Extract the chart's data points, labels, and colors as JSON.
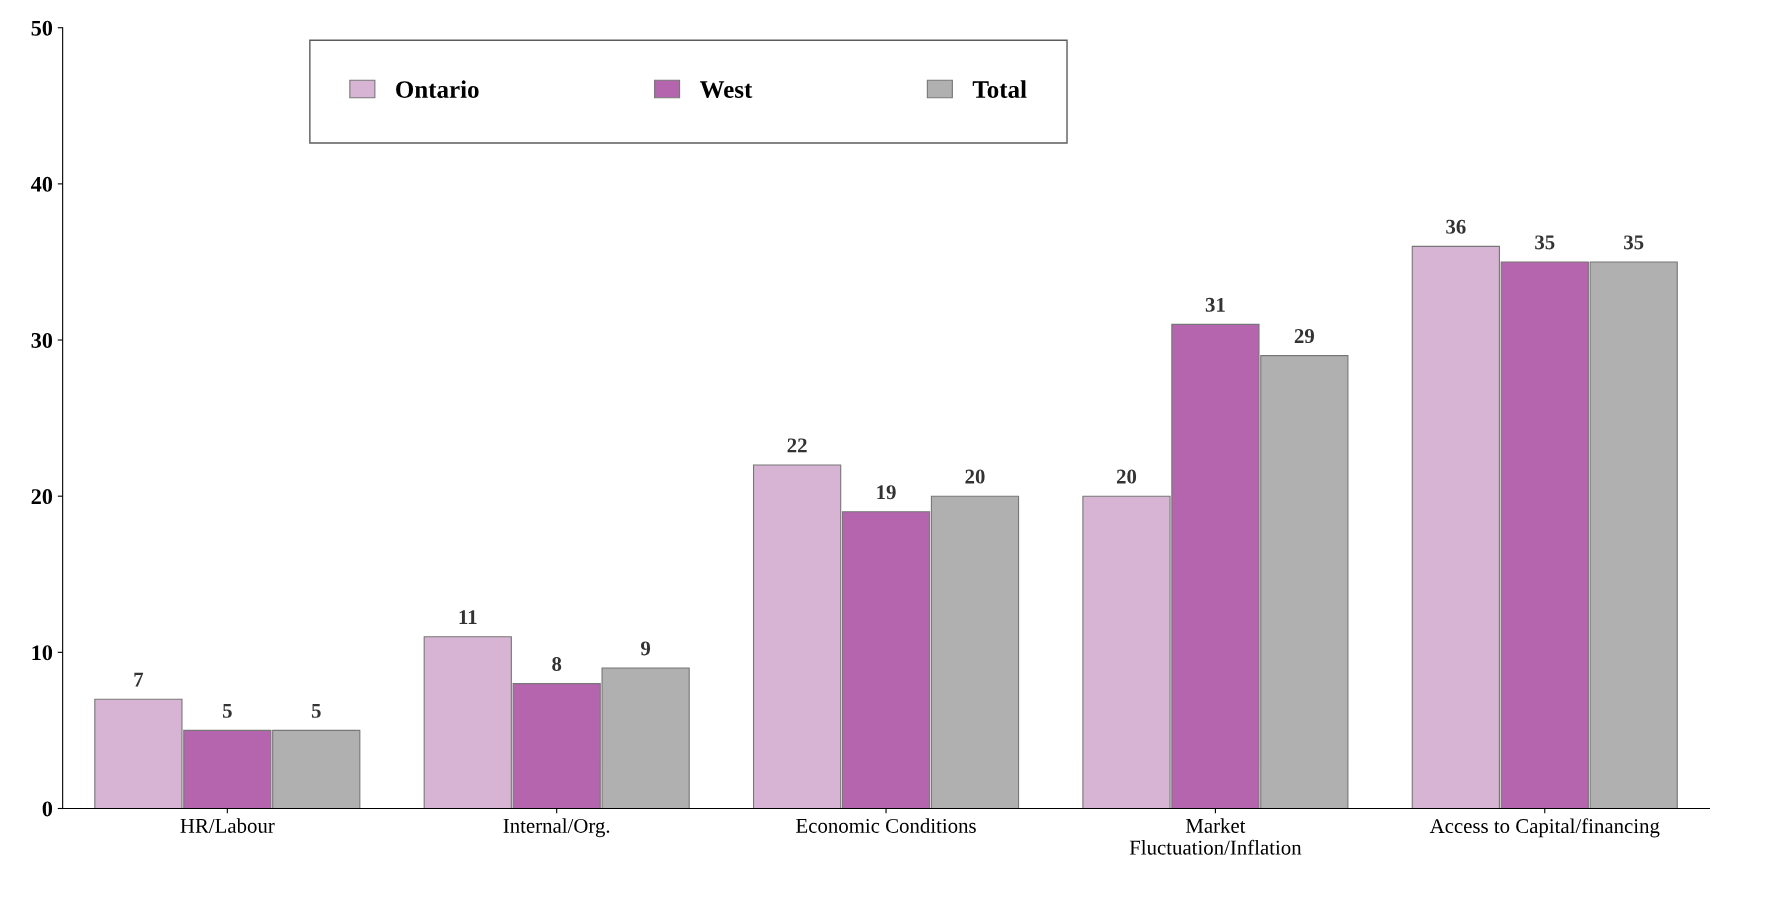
{
  "chart_data": {
    "type": "bar",
    "categories": [
      "HR/Labour",
      "Internal/Org.",
      "Economic Conditions",
      "Market\nFluctuation/Inflation",
      "Access to Capital/financing"
    ],
    "series": [
      {
        "name": "Ontario",
        "color": "#d8b4d4",
        "values": [
          7,
          11,
          22,
          20,
          36
        ]
      },
      {
        "name": "West",
        "color": "#b565ad",
        "values": [
          5,
          8,
          19,
          31,
          35
        ]
      },
      {
        "name": "Total",
        "color": "#b0b0b0",
        "values": [
          5,
          9,
          20,
          29,
          35
        ]
      }
    ],
    "ylim": [
      0,
      50
    ],
    "yticks": [
      0,
      10,
      20,
      30,
      40,
      50
    ],
    "data_labels": true,
    "grid": false,
    "legend": "top"
  }
}
